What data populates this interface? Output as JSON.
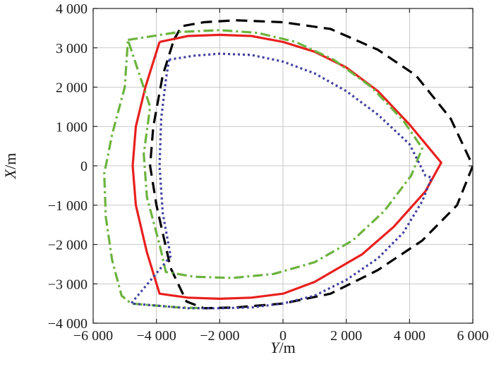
{
  "chart_data": {
    "type": "line",
    "title": "",
    "xlabel_var": "Y",
    "xlabel_unit": "/m",
    "ylabel_var": "X",
    "ylabel_unit": "/m",
    "xlim": [
      -6000,
      6000
    ],
    "ylim": [
      -4000,
      4000
    ],
    "xticks": [
      -6000,
      -4000,
      -2000,
      0,
      2000,
      4000,
      6000
    ],
    "yticks": [
      -4000,
      -3000,
      -2000,
      -1000,
      0,
      1000,
      2000,
      3000,
      4000
    ],
    "xtick_labels": [
      "−6 000",
      "−4 000",
      "−2 000",
      "0",
      "2 000",
      "4 000",
      "6 000"
    ],
    "ytick_labels": [
      "−4 000",
      "−3 000",
      "−2 000",
      "−1 000",
      "0",
      "1 000",
      "2 000",
      "3 000",
      "4 000"
    ],
    "grid": true,
    "series": [
      {
        "color": "#000000",
        "style": "dashed",
        "points": [
          [
            -3450,
            3200
          ],
          [
            -3200,
            3550
          ],
          [
            -2500,
            3650
          ],
          [
            -1500,
            3700
          ],
          [
            0,
            3650
          ],
          [
            1500,
            3480
          ],
          [
            3000,
            2950
          ],
          [
            4200,
            2300
          ],
          [
            5300,
            1200
          ],
          [
            6000,
            0
          ],
          [
            5500,
            -1000
          ],
          [
            4400,
            -1900
          ],
          [
            3000,
            -2650
          ],
          [
            1500,
            -3250
          ],
          [
            0,
            -3500
          ],
          [
            -1500,
            -3600
          ],
          [
            -2500,
            -3620
          ],
          [
            -3050,
            -3450
          ],
          [
            -3550,
            -2600
          ],
          [
            -4000,
            -1000
          ],
          [
            -4200,
            0
          ],
          [
            -4100,
            1000
          ],
          [
            -3800,
            2300
          ],
          [
            -3450,
            3200
          ]
        ]
      },
      {
        "color": "#e8201e",
        "style": "solid",
        "points": [
          [
            -3900,
            3150
          ],
          [
            -3000,
            3300
          ],
          [
            -2000,
            3330
          ],
          [
            -1000,
            3300
          ],
          [
            0,
            3150
          ],
          [
            1000,
            2900
          ],
          [
            2000,
            2500
          ],
          [
            3000,
            1900
          ],
          [
            4000,
            1050
          ],
          [
            5000,
            80
          ],
          [
            4500,
            -650
          ],
          [
            3500,
            -1550
          ],
          [
            2500,
            -2250
          ],
          [
            1000,
            -2950
          ],
          [
            0,
            -3250
          ],
          [
            -1000,
            -3350
          ],
          [
            -2000,
            -3380
          ],
          [
            -3000,
            -3350
          ],
          [
            -3900,
            -3250
          ],
          [
            -4300,
            -2200
          ],
          [
            -4650,
            -1000
          ],
          [
            -4750,
            0
          ],
          [
            -4650,
            1000
          ],
          [
            -4350,
            2000
          ],
          [
            -3900,
            3150
          ]
        ]
      },
      {
        "color": "#6cb33e",
        "style": "dashdot",
        "points": [
          [
            -4900,
            3200
          ],
          [
            -3300,
            3400
          ],
          [
            -2000,
            3450
          ],
          [
            -800,
            3380
          ],
          [
            400,
            3150
          ],
          [
            1600,
            2700
          ],
          [
            2800,
            2000
          ],
          [
            3800,
            1150
          ],
          [
            4400,
            450
          ],
          [
            4050,
            -250
          ],
          [
            3200,
            -1150
          ],
          [
            2200,
            -1900
          ],
          [
            1000,
            -2450
          ],
          [
            -300,
            -2750
          ],
          [
            -1600,
            -2850
          ],
          [
            -2800,
            -2820
          ],
          [
            -3700,
            -2700
          ],
          [
            -3900,
            -2000
          ],
          [
            -4300,
            -800
          ],
          [
            -4400,
            300
          ],
          [
            -4200,
            1500
          ],
          [
            -4900,
            3200
          ],
          [
            -5000,
            2000
          ],
          [
            -5400,
            800
          ],
          [
            -5650,
            -200
          ],
          [
            -5600,
            -1300
          ],
          [
            -5400,
            -2400
          ],
          [
            -5100,
            -3300
          ],
          [
            -4800,
            -3500
          ],
          [
            -3300,
            -3600
          ],
          [
            -2500,
            -3620
          ]
        ]
      },
      {
        "color": "#4040a0",
        "style": "dotted",
        "points": [
          [
            -3600,
            2700
          ],
          [
            -2800,
            2800
          ],
          [
            -2000,
            2850
          ],
          [
            -1000,
            2820
          ],
          [
            0,
            2650
          ],
          [
            1000,
            2350
          ],
          [
            2000,
            1900
          ],
          [
            3000,
            1300
          ],
          [
            4000,
            550
          ],
          [
            4500,
            -250
          ],
          [
            4700,
            -300
          ],
          [
            4400,
            -900
          ],
          [
            3800,
            -1700
          ],
          [
            3000,
            -2350
          ],
          [
            2000,
            -2900
          ],
          [
            1000,
            -3300
          ],
          [
            0,
            -3500
          ],
          [
            -1000,
            -3600
          ],
          [
            -2000,
            -3620
          ],
          [
            -3000,
            -3620
          ],
          [
            -4800,
            -3500
          ],
          [
            -3550,
            -2300
          ],
          [
            -3800,
            -1200
          ],
          [
            -3900,
            0
          ],
          [
            -3850,
            1200
          ],
          [
            -3700,
            2200
          ],
          [
            -3600,
            2700
          ]
        ]
      }
    ]
  }
}
